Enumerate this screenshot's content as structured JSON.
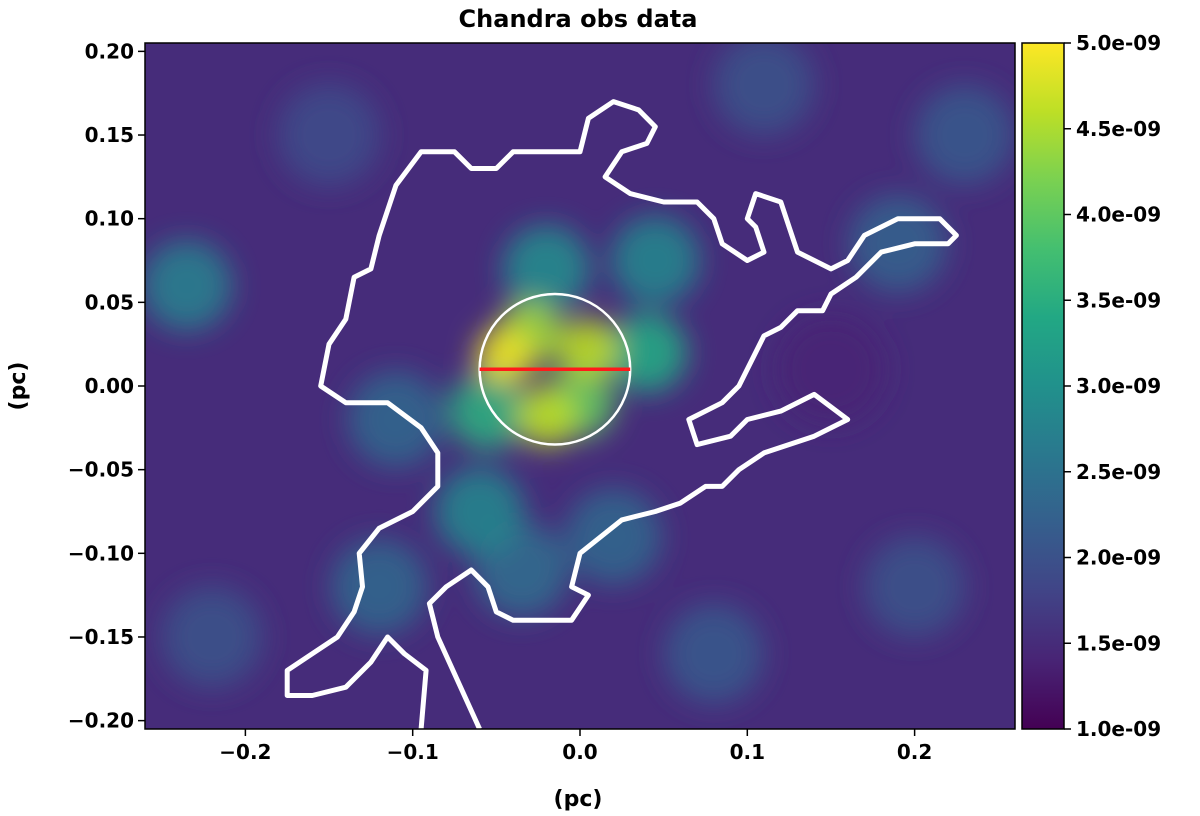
{
  "chart_data": {
    "type": "heatmap",
    "title": "Chandra obs data",
    "xlabel": "(pc)",
    "ylabel": "(pc)",
    "xlim": [
      -0.26,
      0.26
    ],
    "ylim": [
      -0.205,
      0.205
    ],
    "xticks": [
      -0.2,
      -0.1,
      0.0,
      0.1,
      0.2
    ],
    "xtick_labels": [
      "−0.2",
      "−0.1",
      "0.0",
      "0.1",
      "0.2"
    ],
    "yticks": [
      0.2,
      0.15,
      0.1,
      0.05,
      0.0,
      -0.05,
      -0.1,
      -0.15,
      -0.2
    ],
    "ytick_labels": [
      "0.20",
      "0.15",
      "0.10",
      "0.05",
      "0.00",
      "−0.05",
      "−0.10",
      "−0.15",
      "−0.20"
    ],
    "colorbar": {
      "range": [
        1e-09,
        5e-09
      ],
      "ticks": [
        5e-09,
        4.5e-09,
        4e-09,
        3.5e-09,
        3e-09,
        2.5e-09,
        2e-09,
        1.5e-09,
        1e-09
      ],
      "tick_labels": [
        "5.0e-09",
        "4.5e-09",
        "4.0e-09",
        "3.5e-09",
        "3.0e-09",
        "2.5e-09",
        "2.0e-09",
        "1.5e-09",
        "1.0e-09"
      ],
      "colormap": "viridis"
    },
    "peaks": [
      {
        "x": -0.045,
        "y": 0.018,
        "value": 4.9e-09
      },
      {
        "x": 0.005,
        "y": 0.022,
        "value": 4.6e-09
      },
      {
        "x": -0.03,
        "y": 0.032,
        "value": 4.4e-09
      },
      {
        "x": -0.02,
        "y": -0.018,
        "value": 4.6e-09
      },
      {
        "x": 0.0,
        "y": -0.01,
        "value": 4e-09
      },
      {
        "x": -0.055,
        "y": -0.015,
        "value": 3.5e-09
      },
      {
        "x": 0.04,
        "y": 0.02,
        "value": 3.4e-09
      },
      {
        "x": -0.02,
        "y": 0.07,
        "value": 2.9e-09
      },
      {
        "x": 0.045,
        "y": 0.075,
        "value": 2.8e-09
      },
      {
        "x": -0.06,
        "y": -0.075,
        "value": 2.8e-09
      },
      {
        "x": -0.035,
        "y": -0.11,
        "value": 2.4e-09
      },
      {
        "x": -0.11,
        "y": -0.02,
        "value": 2.3e-09
      },
      {
        "x": -0.12,
        "y": -0.12,
        "value": 2.3e-09
      },
      {
        "x": 0.02,
        "y": -0.09,
        "value": 2.3e-09
      },
      {
        "x": -0.235,
        "y": 0.06,
        "value": 2.7e-09
      },
      {
        "x": 0.19,
        "y": 0.085,
        "value": 2.2e-09
      },
      {
        "x": 0.11,
        "y": 0.18,
        "value": 2e-09
      },
      {
        "x": 0.2,
        "y": -0.12,
        "value": 2e-09
      },
      {
        "x": 0.08,
        "y": -0.16,
        "value": 2.1e-09
      },
      {
        "x": -0.22,
        "y": -0.15,
        "value": 2e-09
      },
      {
        "x": 0.23,
        "y": 0.15,
        "value": 2.1e-09
      },
      {
        "x": -0.15,
        "y": 0.15,
        "value": 1.9e-09
      },
      {
        "x": 0.15,
        "y": 0.01,
        "value": 1.4e-09
      }
    ],
    "contour": [
      [
        -0.095,
        -0.205
      ],
      [
        -0.092,
        -0.17
      ],
      [
        -0.105,
        -0.16
      ],
      [
        -0.115,
        -0.15
      ],
      [
        -0.125,
        -0.165
      ],
      [
        -0.14,
        -0.18
      ],
      [
        -0.16,
        -0.185
      ],
      [
        -0.175,
        -0.185
      ],
      [
        -0.175,
        -0.17
      ],
      [
        -0.16,
        -0.16
      ],
      [
        -0.145,
        -0.15
      ],
      [
        -0.135,
        -0.135
      ],
      [
        -0.13,
        -0.12
      ],
      [
        -0.132,
        -0.1
      ],
      [
        -0.12,
        -0.085
      ],
      [
        -0.1,
        -0.075
      ],
      [
        -0.085,
        -0.06
      ],
      [
        -0.085,
        -0.04
      ],
      [
        -0.095,
        -0.025
      ],
      [
        -0.115,
        -0.01
      ],
      [
        -0.14,
        -0.01
      ],
      [
        -0.155,
        0.0
      ],
      [
        -0.15,
        0.025
      ],
      [
        -0.14,
        0.04
      ],
      [
        -0.135,
        0.065
      ],
      [
        -0.125,
        0.07
      ],
      [
        -0.12,
        0.09
      ],
      [
        -0.11,
        0.12
      ],
      [
        -0.095,
        0.14
      ],
      [
        -0.075,
        0.14
      ],
      [
        -0.065,
        0.13
      ],
      [
        -0.05,
        0.13
      ],
      [
        -0.04,
        0.14
      ],
      [
        -0.02,
        0.14
      ],
      [
        0.0,
        0.14
      ],
      [
        0.005,
        0.16
      ],
      [
        0.02,
        0.17
      ],
      [
        0.035,
        0.165
      ],
      [
        0.045,
        0.155
      ],
      [
        0.04,
        0.145
      ],
      [
        0.025,
        0.14
      ],
      [
        0.015,
        0.125
      ],
      [
        0.03,
        0.115
      ],
      [
        0.05,
        0.11
      ],
      [
        0.07,
        0.11
      ],
      [
        0.08,
        0.1
      ],
      [
        0.085,
        0.085
      ],
      [
        0.1,
        0.075
      ],
      [
        0.11,
        0.08
      ],
      [
        0.105,
        0.095
      ],
      [
        0.1,
        0.1
      ],
      [
        0.105,
        0.115
      ],
      [
        0.12,
        0.11
      ],
      [
        0.125,
        0.095
      ],
      [
        0.13,
        0.08
      ],
      [
        0.15,
        0.07
      ],
      [
        0.16,
        0.075
      ],
      [
        0.17,
        0.09
      ],
      [
        0.19,
        0.1
      ],
      [
        0.215,
        0.1
      ],
      [
        0.225,
        0.09
      ],
      [
        0.22,
        0.085
      ],
      [
        0.2,
        0.085
      ],
      [
        0.18,
        0.08
      ],
      [
        0.165,
        0.065
      ],
      [
        0.15,
        0.055
      ],
      [
        0.145,
        0.045
      ],
      [
        0.13,
        0.045
      ],
      [
        0.12,
        0.035
      ],
      [
        0.11,
        0.03
      ],
      [
        0.095,
        0.0
      ],
      [
        0.085,
        -0.01
      ],
      [
        0.065,
        -0.02
      ],
      [
        0.07,
        -0.035
      ],
      [
        0.09,
        -0.03
      ],
      [
        0.1,
        -0.02
      ],
      [
        0.12,
        -0.015
      ],
      [
        0.14,
        -0.005
      ],
      [
        0.16,
        -0.02
      ],
      [
        0.14,
        -0.03
      ],
      [
        0.11,
        -0.04
      ],
      [
        0.095,
        -0.05
      ],
      [
        0.085,
        -0.06
      ],
      [
        0.075,
        -0.06
      ],
      [
        0.06,
        -0.07
      ],
      [
        0.045,
        -0.075
      ],
      [
        0.025,
        -0.08
      ],
      [
        0.0,
        -0.1
      ],
      [
        -0.005,
        -0.12
      ],
      [
        0.005,
        -0.125
      ],
      [
        -0.005,
        -0.14
      ],
      [
        -0.015,
        -0.14
      ],
      [
        -0.04,
        -0.14
      ],
      [
        -0.05,
        -0.135
      ],
      [
        -0.055,
        -0.12
      ],
      [
        -0.065,
        -0.11
      ],
      [
        -0.08,
        -0.12
      ],
      [
        -0.09,
        -0.13
      ],
      [
        -0.085,
        -0.15
      ],
      [
        -0.06,
        -0.205
      ]
    ],
    "circle": {
      "cx": -0.015,
      "cy": 0.01,
      "r": 0.045,
      "color": "#ffffff"
    },
    "line": {
      "x1": -0.06,
      "x2": 0.03,
      "y": 0.01,
      "color": "#ff1a1a"
    },
    "contour_color": "#ffffff"
  }
}
